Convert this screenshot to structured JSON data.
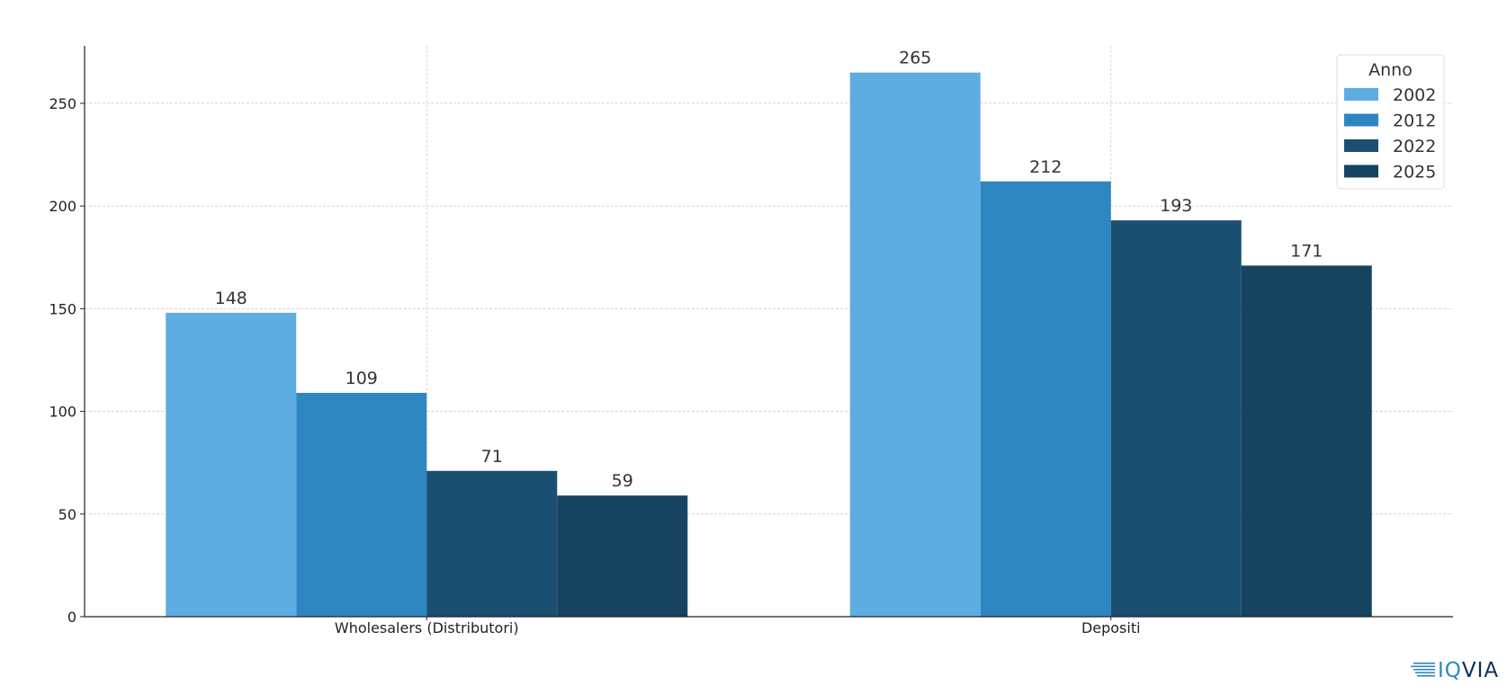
{
  "chart_data": {
    "type": "bar",
    "categories": [
      "Wholesalers (Distributori)",
      "Depositi"
    ],
    "series": [
      {
        "name": "2002",
        "values": [
          148,
          265
        ],
        "color": "#5dade2"
      },
      {
        "name": "2012",
        "values": [
          109,
          212
        ],
        "color": "#2e86c1"
      },
      {
        "name": "2022",
        "values": [
          71,
          193
        ],
        "color": "#1b4f72"
      },
      {
        "name": "2025",
        "values": [
          59,
          171
        ],
        "color": "#154360"
      }
    ],
    "title": "",
    "xlabel": "",
    "ylabel": "",
    "ylim": [
      0,
      278
    ],
    "yticks": [
      0,
      50,
      100,
      150,
      200,
      250
    ],
    "grid": true,
    "legend": {
      "title": "Anno",
      "position": "top-right"
    }
  },
  "logo": {
    "text_iq": "IQ",
    "text_via": "VIA",
    "icon": "iqvia-stripes-icon",
    "colors": {
      "stripes": "#2e86c1",
      "iq": "#2e86c1",
      "via": "#0b2d5b"
    }
  }
}
